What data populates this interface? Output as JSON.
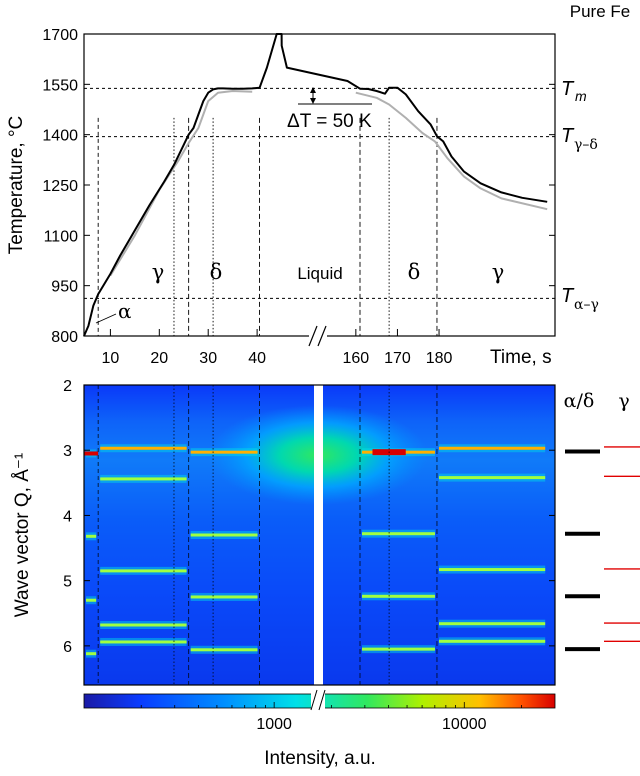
{
  "chart_data": [
    {
      "type": "line",
      "title": "Pure Fe",
      "ylabel": "Temperature, °C",
      "xlabel": "Time, s",
      "ylim": [
        800,
        1700
      ],
      "yticks": [
        800,
        950,
        1100,
        1250,
        1400,
        1550,
        1700
      ],
      "xticks": [
        "10",
        "20",
        "30",
        "40",
        "160",
        "170",
        "180"
      ],
      "x_axis_break": "between 40 s and 160 s",
      "reference_lines": [
        {
          "label": "T_m",
          "value": 1538
        },
        {
          "label": "T_γ–δ",
          "value": 1394
        },
        {
          "label": "T_α–γ",
          "value": 912
        }
      ],
      "annotations": {
        "delta_T": "ΔT = 50 K",
        "alpha": "α",
        "regions": [
          "γ",
          "δ",
          "Liquid",
          "δ",
          "γ"
        ]
      },
      "series": [
        {
          "color": "#000000",
          "points": [
            [
              4.6,
              800
            ],
            [
              5.5,
              830
            ],
            [
              6.5,
              890
            ],
            [
              7.5,
              925
            ],
            [
              10,
              985
            ],
            [
              12,
              1040
            ],
            [
              15,
              1115
            ],
            [
              18,
              1190
            ],
            [
              21,
              1260
            ],
            [
              23,
              1310
            ],
            [
              25,
              1370
            ],
            [
              26,
              1400
            ],
            [
              27,
              1420
            ],
            [
              28,
              1460
            ],
            [
              29,
              1500
            ],
            [
              30,
              1525
            ],
            [
              31,
              1535
            ],
            [
              32,
              1538
            ],
            [
              33,
              1538
            ],
            [
              35,
              1537
            ],
            [
              37,
              1537
            ],
            [
              39,
              1538
            ],
            [
              40.5,
              1540
            ],
            [
              42,
              1600
            ],
            [
              44,
              1700
            ],
            [
              46,
              1700
            ],
            [
              48,
              1665
            ],
            [
              152,
              1600
            ],
            [
              158,
              1560
            ],
            [
              161,
              1537
            ],
            [
              163,
              1536
            ],
            [
              165,
              1530
            ],
            [
              167,
              1522
            ],
            [
              168,
              1540
            ],
            [
              170,
              1540
            ],
            [
              172,
              1520
            ],
            [
              175,
              1470
            ],
            [
              178,
              1430
            ],
            [
              179.5,
              1395
            ],
            [
              181,
              1380
            ],
            [
              183,
              1335
            ],
            [
              186,
              1290
            ],
            [
              190,
              1255
            ],
            [
              195,
              1228
            ],
            [
              200,
              1212
            ],
            [
              206,
              1200
            ]
          ]
        },
        {
          "color": "#b0b0b0",
          "points": [
            [
              10,
              980
            ],
            [
              15,
              1100
            ],
            [
              20,
              1235
            ],
            [
              24,
              1325
            ],
            [
              26,
              1375
            ],
            [
              28,
              1420
            ],
            [
              30,
              1500
            ],
            [
              32,
              1525
            ],
            [
              35,
              1530
            ],
            [
              39,
              1528
            ],
            [
              160,
              1525
            ],
            [
              165,
              1510
            ],
            [
              168,
              1490
            ],
            [
              172,
              1450
            ],
            [
              176,
              1405
            ],
            [
              179,
              1380
            ],
            [
              182,
              1330
            ],
            [
              186,
              1275
            ],
            [
              190,
              1240
            ],
            [
              195,
              1210
            ],
            [
              206,
              1178
            ]
          ]
        }
      ]
    },
    {
      "type": "heatmap",
      "ylabel": "Wave vector Q, Å⁻¹",
      "ylim": [
        2,
        6.6
      ],
      "yticks": [
        2,
        3,
        4,
        5,
        6
      ],
      "colorbar": {
        "label": "Intensity, a.u.",
        "ticks": [
          "1000",
          "10000"
        ],
        "scale": "log",
        "range": [
          100,
          30000
        ]
      },
      "phase_reference": {
        "headers": [
          "α/δ",
          "γ"
        ],
        "alpha_delta_Q": [
          3.02,
          4.28,
          5.24,
          6.05
        ],
        "gamma_Q": [
          2.95,
          3.4,
          4.82,
          5.65,
          5.93
        ]
      },
      "streaks": [
        {
          "phase": "α",
          "x": [
            4.6,
            7.5
          ],
          "Q": [
            3.05,
            4.32,
            5.3,
            6.12
          ]
        },
        {
          "phase": "γ",
          "x": [
            7.5,
            26
          ],
          "Q": [
            2.97,
            3.44,
            4.85,
            5.68,
            5.94
          ]
        },
        {
          "phase": "δ",
          "x": [
            26,
            40.5
          ],
          "Q": [
            3.03,
            4.3,
            5.25,
            6.06
          ]
        },
        {
          "phase": "δ",
          "x": [
            161,
            179.5
          ],
          "Q": [
            3.03,
            4.28,
            5.24,
            6.05
          ]
        },
        {
          "phase": "γ",
          "x": [
            179.5,
            206
          ],
          "Q": [
            2.97,
            3.42,
            4.83,
            5.66,
            5.93
          ]
        }
      ]
    }
  ]
}
